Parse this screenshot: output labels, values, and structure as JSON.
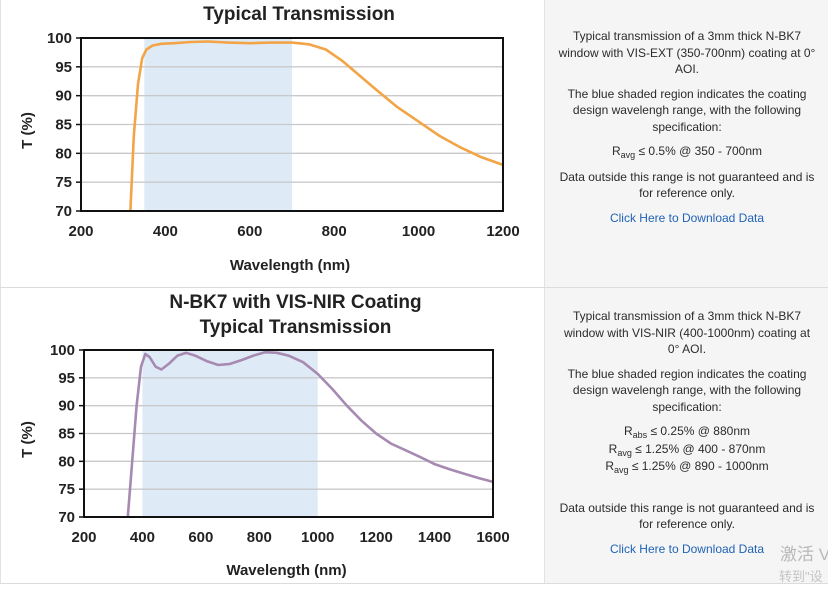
{
  "chart_data": [
    {
      "type": "line",
      "title": "Typical Transmission",
      "xlabel": "Wavelength (nm)",
      "ylabel": "T (%)",
      "xlim": [
        200,
        1200
      ],
      "ylim": [
        70,
        100
      ],
      "x_ticks": [
        "200",
        "400",
        "600",
        "800",
        "1000",
        "1200"
      ],
      "y_ticks": [
        "70",
        "75",
        "80",
        "85",
        "90",
        "95",
        "100"
      ],
      "grid": true,
      "shaded_range": [
        350,
        700
      ],
      "shade_color": "#deebf7",
      "line_color": "#f2a446",
      "series": [
        {
          "x": [
            317,
            325,
            335,
            345,
            355,
            370,
            390,
            420,
            460,
            500,
            550,
            600,
            650,
            700,
            740,
            780,
            820,
            860,
            900,
            950,
            1000,
            1050,
            1100,
            1150,
            1200
          ],
          "y": [
            70,
            83,
            92,
            96.5,
            98,
            98.7,
            99,
            99.1,
            99.3,
            99.4,
            99.2,
            99.1,
            99.2,
            99.2,
            98.9,
            98,
            96,
            93.5,
            91,
            88,
            85.5,
            83,
            81,
            79.3,
            78
          ]
        }
      ]
    },
    {
      "type": "line",
      "title": "N-BK7 with VIS-NIR Coating",
      "subtitle": "Typical Transmission",
      "xlabel": "Wavelength (nm)",
      "ylabel": "T (%)",
      "xlim": [
        200,
        1600
      ],
      "ylim": [
        70,
        100
      ],
      "x_ticks": [
        "200",
        "400",
        "600",
        "800",
        "1000",
        "1200",
        "1400",
        "1600"
      ],
      "y_ticks": [
        "70",
        "75",
        "80",
        "85",
        "90",
        "95",
        "100"
      ],
      "grid": true,
      "shaded_range": [
        400,
        1000
      ],
      "shade_color": "#deebf7",
      "line_color": "#a68ab2",
      "series": [
        {
          "x": [
            350,
            365,
            380,
            395,
            410,
            425,
            445,
            465,
            490,
            520,
            550,
            580,
            620,
            660,
            700,
            740,
            780,
            820,
            860,
            900,
            950,
            1000,
            1050,
            1100,
            1150,
            1200,
            1250,
            1300,
            1350,
            1400,
            1450,
            1500,
            1550,
            1600
          ],
          "y": [
            70,
            80,
            90,
            97,
            99.3,
            98.7,
            97,
            96.5,
            97.5,
            99,
            99.5,
            99,
            98,
            97.3,
            97.5,
            98.2,
            99,
            99.6,
            99.5,
            99,
            97.8,
            95.7,
            93,
            90,
            87.3,
            85,
            83.2,
            82,
            80.8,
            79.5,
            78.6,
            77.8,
            77,
            76.3
          ]
        }
      ]
    }
  ],
  "panel1": {
    "description": "Typical transmission of a 3mm thick N-BK7 window with VIS-EXT (350-700nm) coating at 0° AOI.",
    "shaded_note": "The blue shaded region indicates the coating design wavelengh range, with the following specification:",
    "spec": [
      {
        "prefix": "R",
        "sub": "avg",
        "rest": "≤ 0.5% @ 350 - 700nm"
      }
    ],
    "disclaimer": "Data outside this range is not guaranteed and is for reference only.",
    "link": "Click Here to Download Data"
  },
  "panel2": {
    "description": "Typical transmission of a 3mm thick N-BK7 window with VIS-NIR (400-1000nm) coating at 0° AOI.",
    "shaded_note": "The blue shaded region indicates the coating design wavelengh range, with the following specification:",
    "spec": [
      {
        "prefix": "R",
        "sub": "abs",
        "rest": "≤ 0.25% @ 880nm"
      },
      {
        "prefix": "R",
        "sub": "avg",
        "rest": "≤ 1.25% @ 400 - 870nm"
      },
      {
        "prefix": "R",
        "sub": "avg",
        "rest": "≤ 1.25% @ 890 - 1000nm"
      }
    ],
    "disclaimer": "Data outside this range is not guaranteed and is for reference only.",
    "link": "Click Here to Download Data"
  },
  "watermark": {
    "line1": "激活 V",
    "line2": "转到\"设"
  }
}
